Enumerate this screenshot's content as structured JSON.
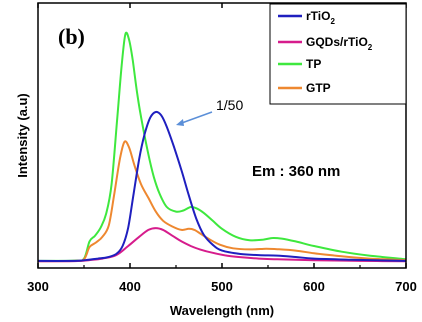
{
  "chart_data": {
    "type": "line",
    "panel_label": "(b)",
    "xlabel": "Wavelength (nm)",
    "ylabel": "Intensity (a.u)",
    "xlim": [
      300,
      700
    ],
    "ylim": [
      0,
      1.0
    ],
    "x_ticks": [
      300,
      400,
      500,
      600,
      700
    ],
    "y_ticks_shown": false,
    "grid": false,
    "legend_position": "top-right",
    "annotations": {
      "emission": "Em : 360 nm",
      "scale_note": "1/50"
    },
    "series": [
      {
        "name": "rTiO2",
        "legend_main": "rTiO",
        "legend_sub": "2",
        "color": "#1f1fbf",
        "points": [
          [
            300,
            0.005
          ],
          [
            340,
            0.005
          ],
          [
            355,
            0.01
          ],
          [
            365,
            0.015
          ],
          [
            375,
            0.02
          ],
          [
            385,
            0.035
          ],
          [
            392,
            0.07
          ],
          [
            398,
            0.15
          ],
          [
            404,
            0.3
          ],
          [
            410,
            0.45
          ],
          [
            416,
            0.56
          ],
          [
            422,
            0.63
          ],
          [
            428,
            0.655
          ],
          [
            434,
            0.64
          ],
          [
            440,
            0.59
          ],
          [
            448,
            0.5
          ],
          [
            456,
            0.4
          ],
          [
            464,
            0.29
          ],
          [
            472,
            0.19
          ],
          [
            480,
            0.12
          ],
          [
            490,
            0.075
          ],
          [
            500,
            0.05
          ],
          [
            520,
            0.035
          ],
          [
            540,
            0.03
          ],
          [
            560,
            0.028
          ],
          [
            580,
            0.022
          ],
          [
            600,
            0.015
          ],
          [
            640,
            0.01
          ],
          [
            700,
            0.005
          ]
        ]
      },
      {
        "name": "GQDs/rTiO2",
        "legend_main": "GQDs/rTiO",
        "legend_sub": "2",
        "color": "#d61c8c",
        "points": [
          [
            300,
            0.003
          ],
          [
            340,
            0.004
          ],
          [
            355,
            0.008
          ],
          [
            370,
            0.015
          ],
          [
            385,
            0.03
          ],
          [
            398,
            0.07
          ],
          [
            410,
            0.11
          ],
          [
            420,
            0.14
          ],
          [
            428,
            0.148
          ],
          [
            436,
            0.14
          ],
          [
            446,
            0.115
          ],
          [
            456,
            0.09
          ],
          [
            466,
            0.07
          ],
          [
            476,
            0.055
          ],
          [
            490,
            0.04
          ],
          [
            510,
            0.025
          ],
          [
            540,
            0.015
          ],
          [
            560,
            0.012
          ],
          [
            600,
            0.008
          ],
          [
            650,
            0.005
          ],
          [
            700,
            0.003
          ]
        ]
      },
      {
        "name": "TP",
        "legend_main": "TP",
        "legend_sub": "",
        "color": "#3ee83e",
        "points": [
          [
            300,
            0.005
          ],
          [
            340,
            0.006
          ],
          [
            350,
            0.015
          ],
          [
            356,
            0.09
          ],
          [
            362,
            0.115
          ],
          [
            368,
            0.15
          ],
          [
            374,
            0.21
          ],
          [
            380,
            0.34
          ],
          [
            386,
            0.62
          ],
          [
            391,
            0.86
          ],
          [
            395,
            0.995
          ],
          [
            399,
            0.97
          ],
          [
            403,
            0.88
          ],
          [
            408,
            0.73
          ],
          [
            414,
            0.59
          ],
          [
            420,
            0.47
          ],
          [
            426,
            0.37
          ],
          [
            432,
            0.3
          ],
          [
            440,
            0.24
          ],
          [
            450,
            0.22
          ],
          [
            458,
            0.225
          ],
          [
            466,
            0.24
          ],
          [
            472,
            0.235
          ],
          [
            480,
            0.215
          ],
          [
            490,
            0.18
          ],
          [
            500,
            0.145
          ],
          [
            515,
            0.11
          ],
          [
            530,
            0.095
          ],
          [
            545,
            0.098
          ],
          [
            555,
            0.105
          ],
          [
            565,
            0.102
          ],
          [
            580,
            0.09
          ],
          [
            600,
            0.07
          ],
          [
            630,
            0.045
          ],
          [
            660,
            0.028
          ],
          [
            700,
            0.012
          ]
        ]
      },
      {
        "name": "GTP",
        "legend_main": "GTP",
        "legend_sub": "",
        "color": "#ee8830",
        "points": [
          [
            300,
            0.004
          ],
          [
            340,
            0.005
          ],
          [
            350,
            0.012
          ],
          [
            356,
            0.065
          ],
          [
            363,
            0.085
          ],
          [
            370,
            0.11
          ],
          [
            377,
            0.16
          ],
          [
            383,
            0.3
          ],
          [
            389,
            0.45
          ],
          [
            394,
            0.525
          ],
          [
            399,
            0.5
          ],
          [
            405,
            0.42
          ],
          [
            412,
            0.34
          ],
          [
            420,
            0.28
          ],
          [
            428,
            0.22
          ],
          [
            436,
            0.18
          ],
          [
            446,
            0.155
          ],
          [
            456,
            0.14
          ],
          [
            464,
            0.145
          ],
          [
            470,
            0.14
          ],
          [
            478,
            0.12
          ],
          [
            488,
            0.095
          ],
          [
            498,
            0.075
          ],
          [
            512,
            0.06
          ],
          [
            530,
            0.055
          ],
          [
            548,
            0.058
          ],
          [
            560,
            0.056
          ],
          [
            580,
            0.05
          ],
          [
            600,
            0.038
          ],
          [
            630,
            0.025
          ],
          [
            660,
            0.015
          ],
          [
            700,
            0.008
          ]
        ]
      }
    ]
  }
}
